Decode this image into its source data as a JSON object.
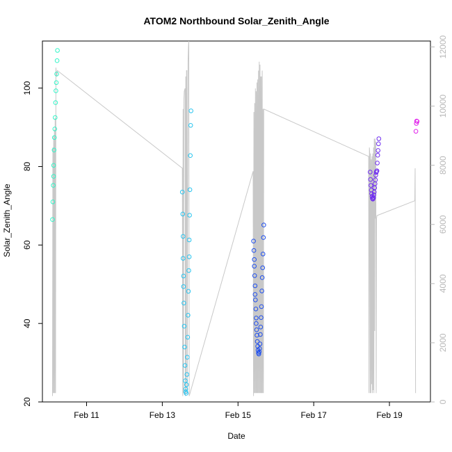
{
  "chart_data": {
    "type": "scatter",
    "title": "ATOM2 Northbound Solar_Zenith_Angle",
    "xlabel": "Date",
    "ylabel": "Solar_Zenith_Angle",
    "x_tick_labels": [
      "Feb 11",
      "Feb 13",
      "Feb 15",
      "Feb 17",
      "Feb 19"
    ],
    "x_tick_dates": [
      "2016-02-11",
      "2016-02-13",
      "2016-02-15",
      "2016-02-17",
      "2016-02-19"
    ],
    "xlim": [
      "2016-02-09T20:00",
      "2016-02-20T02:00"
    ],
    "y_ticks": [
      20,
      40,
      60,
      80,
      100
    ],
    "ylim": [
      20,
      112
    ],
    "y2_ticks": [
      0,
      2000,
      4000,
      6000,
      8000,
      10000,
      12000
    ],
    "y2lim": [
      0,
      12200
    ],
    "series": [
      {
        "color": "#33f5c8",
        "points": [
          [
            "2016-02-10T02:24",
            66.5
          ],
          [
            "2016-02-10T02:38",
            71.0
          ],
          [
            "2016-02-10T02:52",
            75.2
          ],
          [
            "2016-02-10T03:07",
            77.5
          ],
          [
            "2016-02-10T03:07",
            80.3
          ],
          [
            "2016-02-10T03:24",
            84.2
          ],
          [
            "2016-02-10T03:36",
            87.4
          ],
          [
            "2016-02-10T03:50",
            89.6
          ],
          [
            "2016-02-10T04:05",
            92.5
          ],
          [
            "2016-02-10T04:19",
            96.3
          ],
          [
            "2016-02-10T04:34",
            99.3
          ],
          [
            "2016-02-10T04:48",
            101.4
          ],
          [
            "2016-02-10T05:02",
            103.6
          ],
          [
            "2016-02-10T05:17",
            107.0
          ],
          [
            "2016-02-10T05:31",
            109.6
          ]
        ]
      },
      {
        "color": "#28c4ef",
        "points": [
          [
            "2016-02-13T12:43",
            73.5
          ],
          [
            "2016-02-13T12:58",
            67.9
          ],
          [
            "2016-02-13T13:12",
            62.2
          ],
          [
            "2016-02-13T13:12",
            56.6
          ],
          [
            "2016-02-13T13:27",
            52.1
          ],
          [
            "2016-02-13T13:27",
            49.4
          ],
          [
            "2016-02-13T13:41",
            45.2
          ],
          [
            "2016-02-13T13:56",
            39.3
          ],
          [
            "2016-02-13T14:10",
            34.0
          ],
          [
            "2016-02-13T14:24",
            29.3
          ],
          [
            "2016-02-13T14:39",
            25.4
          ],
          [
            "2016-02-13T14:53",
            23.3
          ],
          [
            "2016-02-13T14:53",
            22.6
          ],
          [
            "2016-02-13T15:08",
            22.2
          ],
          [
            "2016-02-13T15:22",
            24.4
          ],
          [
            "2016-02-13T15:36",
            27.0
          ],
          [
            "2016-02-13T15:51",
            31.4
          ],
          [
            "2016-02-13T16:05",
            36.5
          ],
          [
            "2016-02-13T16:19",
            42.1
          ],
          [
            "2016-02-13T16:34",
            48.2
          ],
          [
            "2016-02-13T16:48",
            53.5
          ],
          [
            "2016-02-13T17:03",
            57.0
          ],
          [
            "2016-02-13T17:03",
            61.3
          ],
          [
            "2016-02-13T17:17",
            67.6
          ],
          [
            "2016-02-13T17:31",
            74.1
          ],
          [
            "2016-02-13T17:46",
            82.8
          ],
          [
            "2016-02-13T18:00",
            90.5
          ],
          [
            "2016-02-13T18:14",
            94.2
          ]
        ]
      },
      {
        "color": "#1f4fef",
        "points": [
          [
            "2016-02-15T09:50",
            61.0
          ],
          [
            "2016-02-15T10:05",
            58.6
          ],
          [
            "2016-02-15T10:19",
            56.3
          ],
          [
            "2016-02-15T10:19",
            54.6
          ],
          [
            "2016-02-15T10:34",
            52.2
          ],
          [
            "2016-02-15T10:48",
            49.6
          ],
          [
            "2016-02-15T10:48",
            47.4
          ],
          [
            "2016-02-15T11:02",
            46.0
          ],
          [
            "2016-02-15T11:17",
            43.7
          ],
          [
            "2016-02-15T11:31",
            41.4
          ],
          [
            "2016-02-15T11:31",
            40.0
          ],
          [
            "2016-02-15T11:46",
            38.4
          ],
          [
            "2016-02-15T12:00",
            37.0
          ],
          [
            "2016-02-15T12:14",
            35.4
          ],
          [
            "2016-02-15T12:29",
            34.2
          ],
          [
            "2016-02-15T12:43",
            33.2
          ],
          [
            "2016-02-15T12:58",
            32.5
          ],
          [
            "2016-02-15T13:12",
            32.2
          ],
          [
            "2016-02-15T13:27",
            32.8
          ],
          [
            "2016-02-15T13:41",
            33.6
          ],
          [
            "2016-02-15T13:56",
            34.8
          ],
          [
            "2016-02-15T14:10",
            37.2
          ],
          [
            "2016-02-15T14:24",
            39.1
          ],
          [
            "2016-02-15T14:39",
            41.5
          ],
          [
            "2016-02-15T14:53",
            44.3
          ],
          [
            "2016-02-15T15:08",
            48.3
          ],
          [
            "2016-02-15T15:22",
            51.7
          ],
          [
            "2016-02-15T15:36",
            54.2
          ],
          [
            "2016-02-15T15:51",
            57.7
          ],
          [
            "2016-02-15T16:05",
            61.9
          ],
          [
            "2016-02-15T16:19",
            65.1
          ]
        ]
      },
      {
        "color": "#6f2cf0",
        "points": [
          [
            "2016-02-18T11:46",
            78.6
          ],
          [
            "2016-02-18T12:00",
            76.7
          ],
          [
            "2016-02-18T12:14",
            75.2
          ],
          [
            "2016-02-18T12:29",
            74.0
          ],
          [
            "2016-02-18T12:43",
            73.1
          ],
          [
            "2016-02-18T12:58",
            72.4
          ],
          [
            "2016-02-18T13:12",
            71.9
          ],
          [
            "2016-02-18T13:27",
            71.7
          ],
          [
            "2016-02-18T13:41",
            71.8
          ],
          [
            "2016-02-18T13:56",
            72.1
          ],
          [
            "2016-02-18T14:10",
            72.8
          ],
          [
            "2016-02-18T14:24",
            73.5
          ],
          [
            "2016-02-18T14:39",
            74.6
          ],
          [
            "2016-02-18T14:53",
            75.6
          ],
          [
            "2016-02-18T15:08",
            76.6
          ],
          [
            "2016-02-18T15:22",
            77.8
          ],
          [
            "2016-02-18T15:36",
            78.5
          ],
          [
            "2016-02-18T15:51",
            78.8
          ],
          [
            "2016-02-18T16:05",
            78.9
          ],
          [
            "2016-02-18T16:19",
            80.9
          ],
          [
            "2016-02-18T16:34",
            82.9
          ],
          [
            "2016-02-18T16:48",
            84.1
          ],
          [
            "2016-02-18T17:03",
            85.8
          ],
          [
            "2016-02-18T17:17",
            87.1
          ]
        ]
      },
      {
        "color": "#e020ea",
        "points": [
          [
            "2016-02-19T16:48",
            89.0
          ],
          [
            "2016-02-19T17:03",
            91.0
          ],
          [
            "2016-02-19T17:17",
            91.6
          ],
          [
            "2016-02-19T17:31",
            91.5
          ]
        ]
      }
    ],
    "secondary_series": {
      "color": "#c8c8c8",
      "points": [
        [
          "2016-02-10T02:24",
          200
        ],
        [
          "2016-02-10T02:38",
          8600
        ],
        [
          "2016-02-10T02:52",
          300
        ],
        [
          "2016-02-10T03:07",
          9000
        ],
        [
          "2016-02-10T03:21",
          300
        ],
        [
          "2016-02-10T03:36",
          9200
        ],
        [
          "2016-02-10T03:50",
          300
        ],
        [
          "2016-02-10T04:05",
          9600
        ],
        [
          "2016-02-10T04:19",
          300
        ],
        [
          "2016-02-10T04:34",
          11300
        ],
        [
          "2016-02-10T05:02",
          11000
        ],
        [
          "2016-02-10T05:31",
          11200
        ],
        [
          "2016-02-13T12:43",
          7900
        ],
        [
          "2016-02-13T12:58",
          200
        ],
        [
          "2016-02-13T13:12",
          9900
        ],
        [
          "2016-02-13T13:27",
          300
        ],
        [
          "2016-02-13T13:41",
          10200
        ],
        [
          "2016-02-13T13:56",
          10500
        ],
        [
          "2016-02-13T14:24",
          10600
        ],
        [
          "2016-02-13T14:39",
          200
        ],
        [
          "2016-02-13T14:53",
          11000
        ],
        [
          "2016-02-13T15:08",
          300
        ],
        [
          "2016-02-13T15:22",
          11200
        ],
        [
          "2016-02-13T15:36",
          11200
        ],
        [
          "2016-02-13T15:51",
          300
        ],
        [
          "2016-02-13T16:19",
          11500
        ],
        [
          "2016-02-13T16:34",
          12000
        ],
        [
          "2016-02-13T16:48",
          12200
        ],
        [
          "2016-02-13T17:03",
          200
        ],
        [
          "2016-02-15T09:36",
          7800
        ],
        [
          "2016-02-15T09:50",
          200
        ],
        [
          "2016-02-15T10:05",
          9800
        ],
        [
          "2016-02-15T10:19",
          300
        ],
        [
          "2016-02-15T10:34",
          10100
        ],
        [
          "2016-02-15T10:48",
          300
        ],
        [
          "2016-02-15T11:02",
          10600
        ],
        [
          "2016-02-15T11:17",
          300
        ],
        [
          "2016-02-15T11:31",
          10500
        ],
        [
          "2016-02-15T11:46",
          300
        ],
        [
          "2016-02-15T12:00",
          10800
        ],
        [
          "2016-02-15T12:14",
          300
        ],
        [
          "2016-02-15T12:29",
          10900
        ],
        [
          "2016-02-15T12:43",
          300
        ],
        [
          "2016-02-15T12:58",
          11200
        ],
        [
          "2016-02-15T13:12",
          300
        ],
        [
          "2016-02-15T13:27",
          11500
        ],
        [
          "2016-02-15T13:41",
          300
        ],
        [
          "2016-02-15T13:56",
          11400
        ],
        [
          "2016-02-15T14:10",
          300
        ],
        [
          "2016-02-15T14:24",
          11000
        ],
        [
          "2016-02-15T14:39",
          300
        ],
        [
          "2016-02-15T14:53",
          11000
        ],
        [
          "2016-02-15T15:08",
          300
        ],
        [
          "2016-02-15T15:22",
          11200
        ],
        [
          "2016-02-15T15:36",
          300
        ],
        [
          "2016-02-15T15:51",
          9900
        ],
        [
          "2016-02-15T16:05",
          300
        ],
        [
          "2016-02-15T16:19",
          9900
        ],
        [
          "2016-02-18T10:48",
          8300
        ],
        [
          "2016-02-18T11:02",
          300
        ],
        [
          "2016-02-18T11:17",
          8600
        ],
        [
          "2016-02-18T11:31",
          8400
        ],
        [
          "2016-02-18T11:46",
          300
        ],
        [
          "2016-02-18T12:00",
          8400
        ],
        [
          "2016-02-18T12:14",
          300
        ],
        [
          "2016-02-18T12:29",
          8200
        ],
        [
          "2016-02-18T12:43",
          600
        ],
        [
          "2016-02-18T12:58",
          8300
        ],
        [
          "2016-02-18T13:12",
          300
        ],
        [
          "2016-02-18T13:27",
          8400
        ],
        [
          "2016-02-18T13:41",
          400
        ],
        [
          "2016-02-18T13:56",
          8600
        ],
        [
          "2016-02-18T14:10",
          300
        ],
        [
          "2016-02-18T14:24",
          8900
        ],
        [
          "2016-02-18T14:39",
          2400
        ],
        [
          "2016-02-18T14:53",
          8900
        ],
        [
          "2016-02-18T15:08",
          6200
        ],
        [
          "2016-02-18T15:22",
          8800
        ],
        [
          "2016-02-18T15:36",
          300
        ],
        [
          "2016-02-18T15:51",
          6200
        ],
        [
          "2016-02-18T16:05",
          6300
        ],
        [
          "2016-02-19T16:05",
          6800
        ],
        [
          "2016-02-19T16:19",
          7900
        ],
        [
          "2016-02-19T16:34",
          300
        ]
      ]
    },
    "grid": false,
    "legend": "none"
  }
}
